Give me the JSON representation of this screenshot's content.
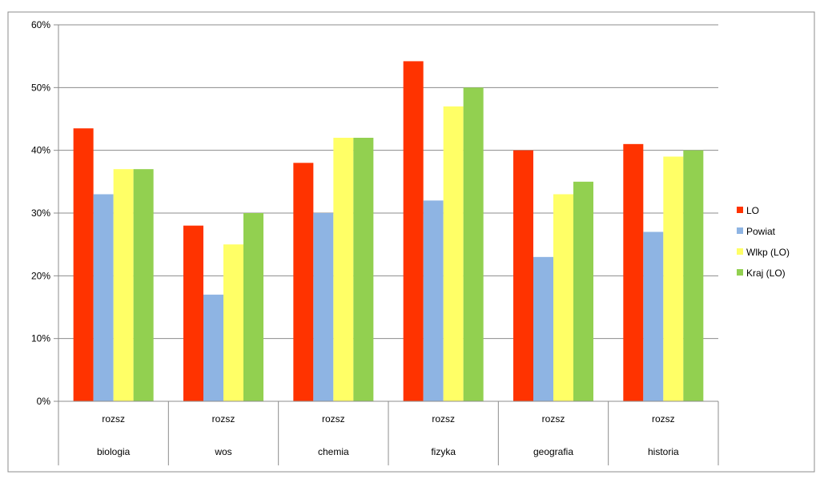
{
  "chart_data": {
    "type": "bar",
    "title": "",
    "xlabel": "",
    "ylabel": "",
    "ylim": [
      0,
      60
    ],
    "y_ticks": [
      "0%",
      "10%",
      "20%",
      "30%",
      "40%",
      "50%",
      "60%"
    ],
    "y_tick_values": [
      0,
      10,
      20,
      30,
      40,
      50,
      60
    ],
    "grid": true,
    "legend_position": "right",
    "categories": [
      {
        "level": "rozsz",
        "subject": "biologia"
      },
      {
        "level": "rozsz",
        "subject": "wos"
      },
      {
        "level": "rozsz",
        "subject": "chemia"
      },
      {
        "level": "rozsz",
        "subject": "fizyka"
      },
      {
        "level": "rozsz",
        "subject": "geografia"
      },
      {
        "level": "rozsz",
        "subject": "historia"
      }
    ],
    "series": [
      {
        "name": "LO",
        "color": "#ff3300",
        "values": [
          43.5,
          28,
          38,
          54.2,
          40,
          41
        ]
      },
      {
        "name": "Powiat",
        "color": "#8eb4e3",
        "values": [
          33,
          17,
          30,
          32,
          23,
          27
        ]
      },
      {
        "name": "Wlkp (LO)",
        "color": "#ffff66",
        "values": [
          37,
          25,
          42,
          47,
          33,
          39
        ]
      },
      {
        "name": "Kraj (LO)",
        "color": "#92d050",
        "values": [
          37,
          30,
          42,
          50,
          35,
          40
        ]
      }
    ]
  }
}
